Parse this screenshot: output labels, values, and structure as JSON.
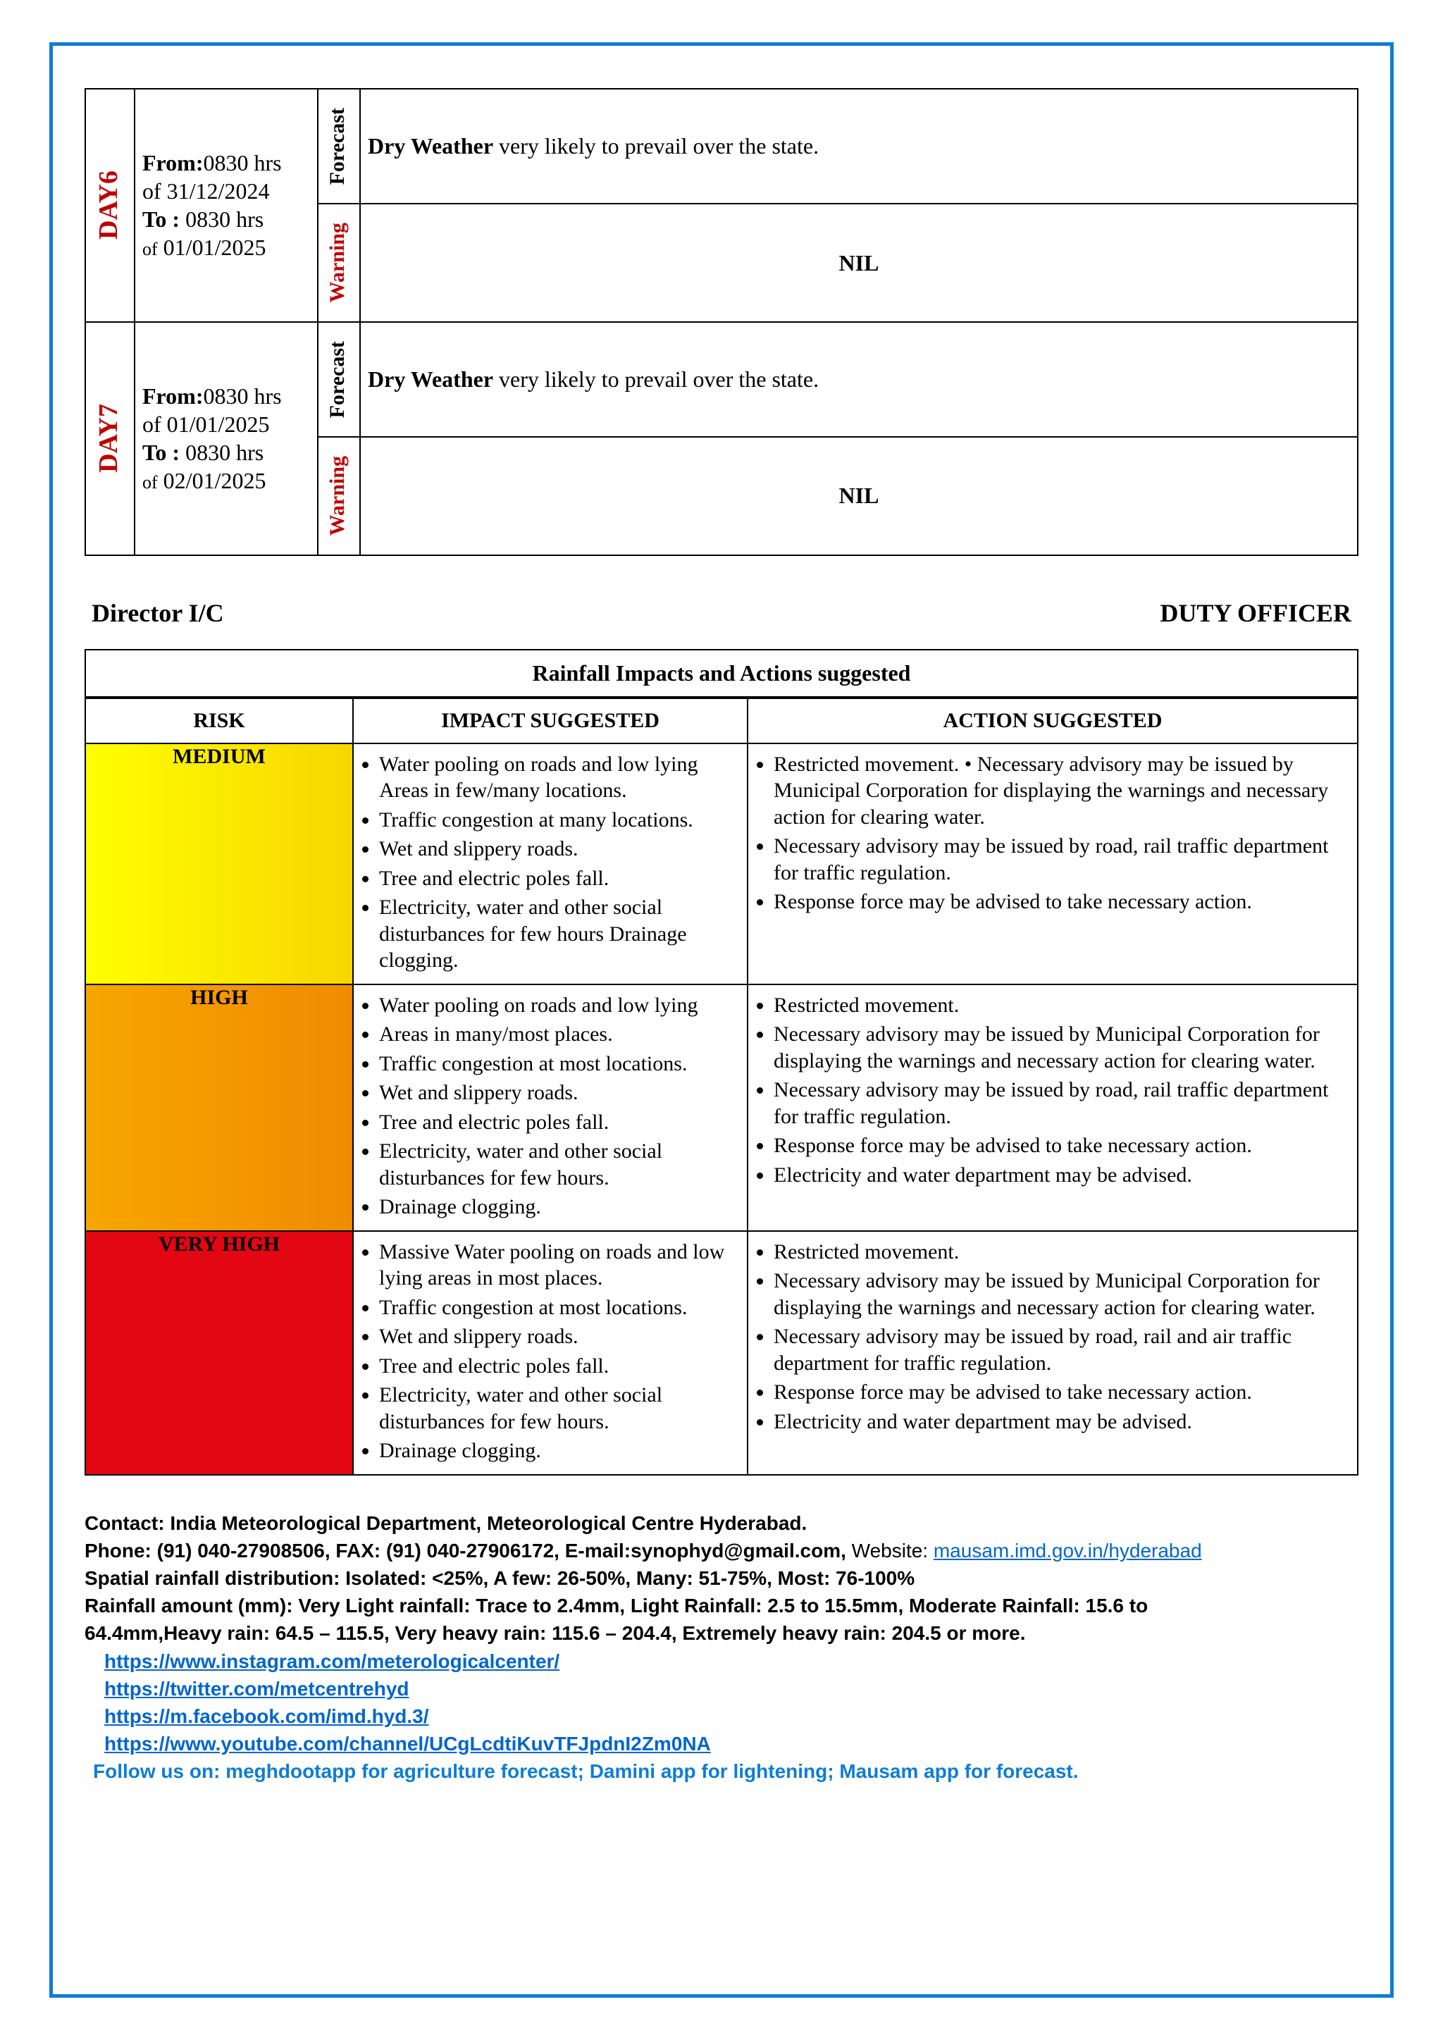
{
  "forecast_rows": [
    {
      "day": "DAY6",
      "from_label": "From:",
      "from_time": "0830 hrs",
      "from_date_prefix": "of",
      "from_date": "31/12/2024",
      "to_label": "To :",
      "to_time": "0830 hrs",
      "to_date_prefix": "of",
      "to_date": "01/01/2025",
      "forecast_label": "Forecast",
      "forecast_bold": "Dry Weather",
      "forecast_text": " very likely to prevail over the state.",
      "warning_label": "Warning",
      "warning_text": "NIL"
    },
    {
      "day": "DAY7",
      "from_label": "From:",
      "from_time": "0830 hrs",
      "from_date_prefix": "of",
      "from_date": "01/01/2025",
      "to_label": "To :",
      "to_time": "0830 hrs",
      "to_date_prefix": "of",
      "to_date": "02/01/2025",
      "forecast_label": "Forecast",
      "forecast_bold": "Dry Weather",
      "forecast_text": " very likely to prevail over the state.",
      "warning_label": "Warning",
      "warning_text": "NIL"
    }
  ],
  "sign": {
    "left": "Director I/C",
    "right": "DUTY OFFICER"
  },
  "impact": {
    "title": "Rainfall Impacts and Actions suggested",
    "headers": {
      "risk": "RISK",
      "impact": "IMPACT SUGGESTED",
      "action": "ACTION SUGGESTED"
    },
    "rows": [
      {
        "risk": "MEDIUM",
        "risk_class": "risk-medium",
        "impacts": [
          "Water pooling on roads and low lying Areas in few/many locations.",
          "Traffic congestion at many locations.",
          "Wet and slippery roads.",
          "Tree and electric poles fall.",
          "Electricity, water and other social disturbances for few hours Drainage clogging."
        ],
        "actions": [
          "Restricted movement. • Necessary advisory may be issued by Municipal Corporation for displaying the warnings and necessary action for clearing water.",
          "Necessary advisory may be issued by road, rail traffic department for traffic regulation.",
          "Response force may be advised to take necessary action."
        ]
      },
      {
        "risk": "HIGH",
        "risk_class": "risk-high",
        "impacts": [
          "Water pooling on roads and low lying",
          "Areas in many/most places.",
          "Traffic congestion at most locations.",
          "Wet and slippery roads.",
          "Tree and electric poles fall.",
          "Electricity, water and other social disturbances for few hours.",
          "Drainage clogging."
        ],
        "actions": [
          "Restricted movement.",
          "Necessary advisory may be issued by Municipal Corporation for displaying the warnings and necessary action for clearing water.",
          "Necessary advisory may be issued by road, rail traffic department for traffic regulation.",
          "Response force may be advised to take necessary action.",
          "Electricity and water department may be advised."
        ]
      },
      {
        "risk": "VERY HIGH",
        "risk_class": "risk-vhigh",
        "impacts": [
          "Massive Water pooling on roads and low lying areas in most places.",
          "Traffic congestion at most locations.",
          "Wet and slippery roads.",
          "Tree and electric poles fall.",
          "Electricity, water and other social disturbances for few hours.",
          "Drainage clogging."
        ],
        "actions": [
          "Restricted movement.",
          "Necessary advisory may be issued by Municipal Corporation for displaying the warnings and necessary action for clearing water.",
          "Necessary advisory may be issued by road, rail and air traffic department for traffic regulation.",
          "Response force may be advised to take necessary action.",
          "Electricity and water department may be advised."
        ]
      }
    ]
  },
  "footer": {
    "contact": "Contact: India Meteorological Department, Meteorological Centre Hyderabad.",
    "phone_prefix": "Phone: (91) 040-27908506, FAX: (91) 040-27906172, E-mail:synophyd@gmail.com,",
    "website_label": " Website: ",
    "website": "mausam.imd.gov.in/hyderabad",
    "spatial": "Spatial rainfall distribution: Isolated: <25%, A few: 26-50%, Many: 51-75%, Most: 76-100%",
    "amount1": "Rainfall amount (mm): Very Light rainfall: Trace to 2.4mm, Light Rainfall: 2.5 to 15.5mm, Moderate Rainfall: 15.6 to",
    "amount2": "64.4mm,Heavy rain: 64.5 – 115.5, Very heavy rain: 115.6 – 204.4, Extremely heavy rain: 204.5 or more.",
    "socials": [
      "https://www.instagram.com/meterologicalcenter/",
      "https://twitter.com/metcentrehyd",
      "https://m.facebook.com/imd.hyd.3/",
      "https://www.youtube.com/channel/UCgLcdtiKuvTFJpdnI2Zm0NA"
    ],
    "follow": "Follow us on: meghdootapp for agriculture forecast; Damini app for lightening; Mausam app for forecast."
  }
}
